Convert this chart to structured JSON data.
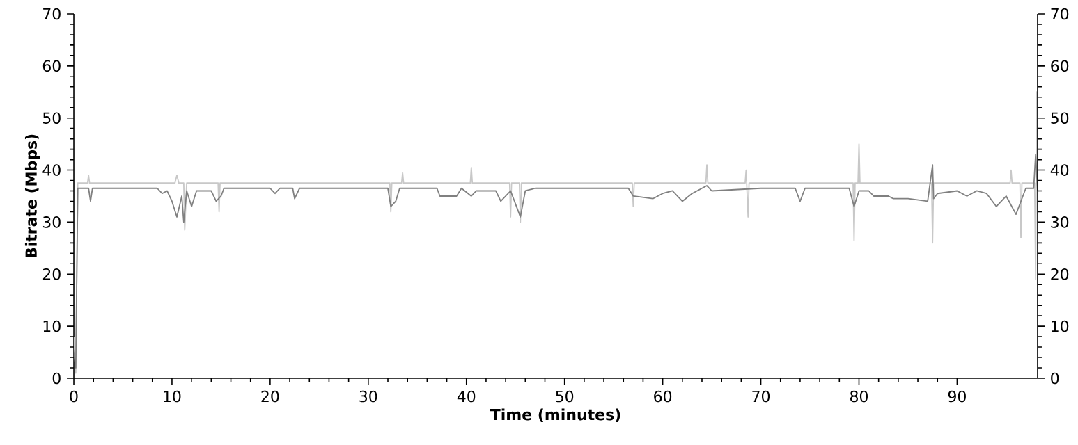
{
  "chart_data": {
    "type": "line",
    "xlabel": "Time (minutes)",
    "ylabel": "Bitrate (Mbps)",
    "xlim": [
      0,
      98.2
    ],
    "ylim": [
      0,
      70
    ],
    "xticks": [
      0,
      10,
      20,
      30,
      40,
      50,
      60,
      70,
      80,
      90
    ],
    "yticks": [
      0,
      10,
      20,
      30,
      40,
      50,
      60,
      70
    ],
    "y2lim": [
      0,
      70
    ],
    "y2ticks": [
      0,
      10,
      20,
      30,
      40,
      50,
      60,
      70
    ],
    "grid": false,
    "legend": false,
    "marker": "none",
    "line_style": "solid",
    "series": [
      {
        "color": "#c8c8c8",
        "x": [
          0,
          0.2,
          0.4,
          1.4,
          1.5,
          1.6,
          10.3,
          10.5,
          10.7,
          11.2,
          11.3,
          11.5,
          14.7,
          14.8,
          14.9,
          32.2,
          32.3,
          32.4,
          33.4,
          33.5,
          33.6,
          40.4,
          40.5,
          40.6,
          44.4,
          44.5,
          44.6,
          45.4,
          45.5,
          45.6,
          56.9,
          57,
          57.1,
          64.4,
          64.5,
          64.6,
          68.4,
          68.5,
          68.7,
          68.8,
          79.4,
          79.5,
          79.6,
          79.9,
          80,
          80.1,
          87.4,
          87.5,
          87.6,
          95.4,
          95.5,
          95.6,
          96.4,
          96.5,
          96.6,
          97.9,
          98,
          98.1,
          98.2
        ],
        "values": [
          8,
          1,
          37.5,
          37.5,
          39,
          37.5,
          37.5,
          39,
          37.5,
          37.5,
          28.5,
          37.5,
          37.5,
          32,
          37.5,
          37.5,
          32,
          37.5,
          37.5,
          39.5,
          37.5,
          37.5,
          40.5,
          37.5,
          37.5,
          31,
          37.5,
          37.5,
          30,
          37.5,
          37.5,
          33,
          37.5,
          37.5,
          41,
          37.5,
          37.5,
          40,
          31,
          37.5,
          37.5,
          26.5,
          37.5,
          37.5,
          45,
          37.5,
          37.5,
          26,
          37.5,
          37.5,
          40,
          37.5,
          37.5,
          27,
          37.5,
          37.5,
          19,
          55,
          37
        ]
      },
      {
        "color": "#808080",
        "x": [
          0,
          0.2,
          0.4,
          1.5,
          1.7,
          1.9,
          8.5,
          9,
          9.5,
          10,
          10.5,
          11,
          11.2,
          11.5,
          12,
          12.5,
          14,
          14.5,
          15,
          15.3,
          20,
          20.5,
          21,
          22.3,
          22.5,
          23,
          32,
          32.3,
          32.8,
          33.2,
          37,
          37.3,
          39,
          39.5,
          40.5,
          41,
          43,
          43.5,
          44.5,
          45.5,
          46,
          47,
          56.5,
          57,
          59,
          60,
          61,
          62,
          63,
          64.5,
          65,
          70,
          73.5,
          74,
          74.5,
          79,
          79.5,
          80,
          81,
          81.5,
          83,
          83.5,
          85,
          87,
          87.5,
          87.6,
          88,
          90,
          91,
          92,
          93,
          94,
          95,
          96,
          96.5,
          97,
          97.8,
          98,
          98.2
        ],
        "values": [
          5,
          2,
          36.5,
          36.5,
          34,
          36.5,
          36.5,
          35.5,
          36,
          34,
          31,
          35,
          30,
          36,
          33,
          36,
          36,
          34,
          35,
          36.5,
          36.5,
          35.5,
          36.5,
          36.5,
          34.5,
          36.5,
          36.5,
          33,
          34,
          36.5,
          36.5,
          35,
          35,
          36.5,
          35,
          36,
          36,
          34,
          36,
          31,
          36,
          36.5,
          36.5,
          35,
          34.5,
          35.5,
          36,
          34,
          35.5,
          37,
          36,
          36.5,
          36.5,
          34,
          36.5,
          36.5,
          33,
          36,
          36,
          35,
          35,
          34.5,
          34.5,
          34,
          41,
          34.5,
          35.5,
          36,
          35,
          36,
          35.5,
          33,
          35,
          31.5,
          34,
          36.5,
          36.5,
          43,
          36
        ]
      }
    ]
  }
}
